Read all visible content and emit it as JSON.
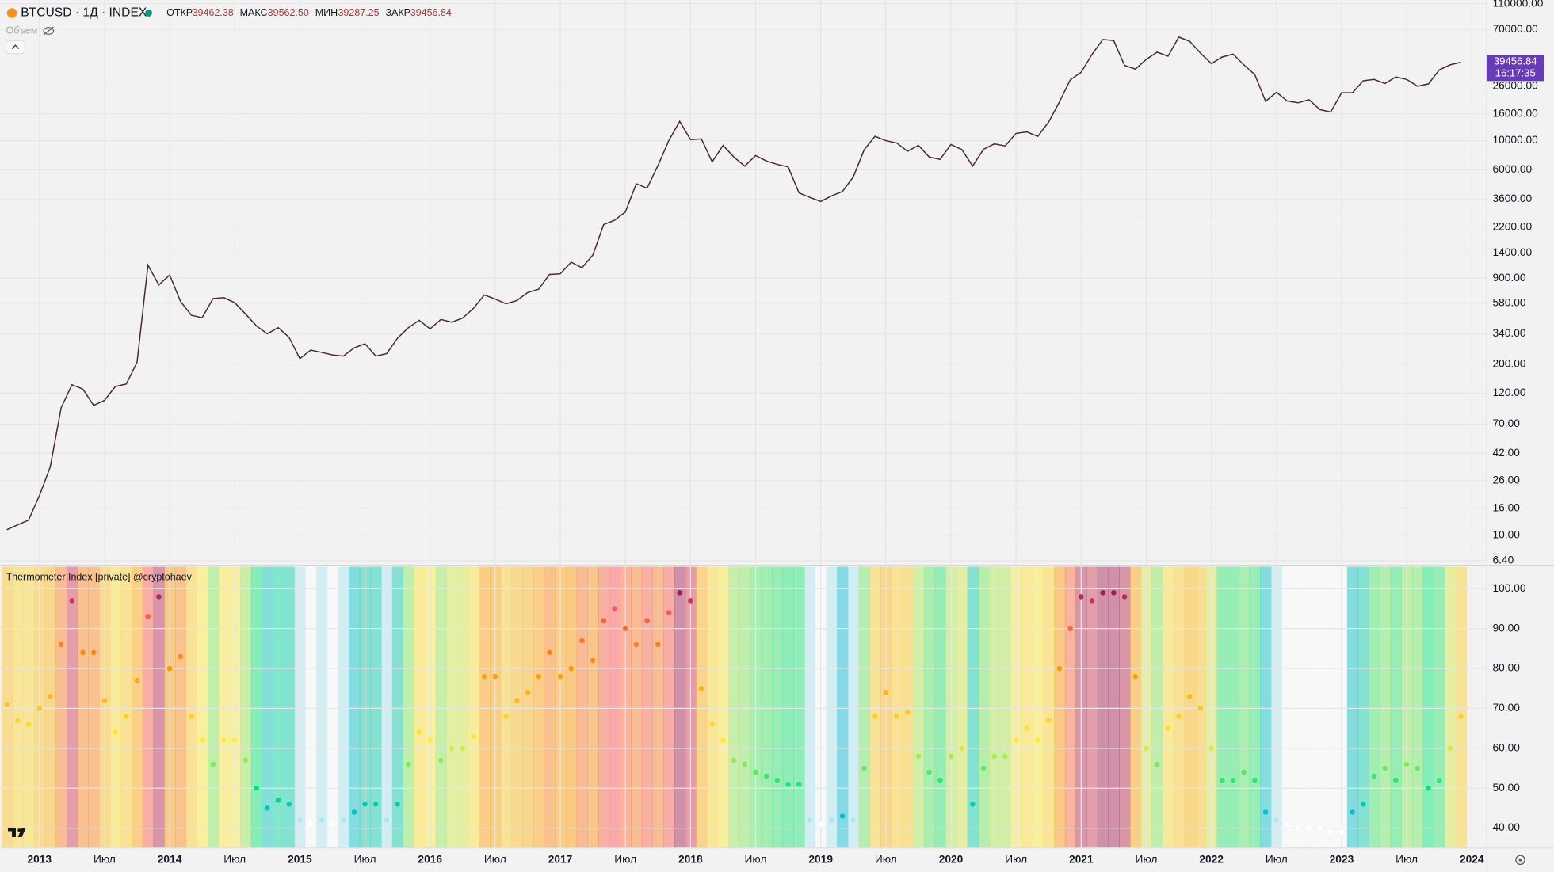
{
  "chart_data": {
    "type": "line",
    "header": {
      "open_label": "ОТКР",
      "open": "39462.38",
      "high_label": "МАКС",
      "high": "39562.50",
      "low_label": "МИН",
      "low": "39287.25",
      "close_label": "ЗАКР",
      "close": "39456.84",
      "volume_label": "Объем",
      "countdown": "16:17:35"
    },
    "x": [
      "2012-10",
      "2012-11",
      "2012-12",
      "2013-01",
      "2013-02",
      "2013-03",
      "2013-04",
      "2013-05",
      "2013-06",
      "2013-07",
      "2013-08",
      "2013-09",
      "2013-10",
      "2013-11",
      "2013-12",
      "2014-01",
      "2014-02",
      "2014-03",
      "2014-04",
      "2014-05",
      "2014-06",
      "2014-07",
      "2014-08",
      "2014-09",
      "2014-10",
      "2014-11",
      "2014-12",
      "2015-01",
      "2015-02",
      "2015-03",
      "2015-04",
      "2015-05",
      "2015-06",
      "2015-07",
      "2015-08",
      "2015-09",
      "2015-10",
      "2015-11",
      "2015-12",
      "2016-01",
      "2016-02",
      "2016-03",
      "2016-04",
      "2016-05",
      "2016-06",
      "2016-07",
      "2016-08",
      "2016-09",
      "2016-10",
      "2016-11",
      "2016-12",
      "2017-01",
      "2017-02",
      "2017-03",
      "2017-04",
      "2017-05",
      "2017-06",
      "2017-07",
      "2017-08",
      "2017-09",
      "2017-10",
      "2017-11",
      "2017-12",
      "2018-01",
      "2018-02",
      "2018-03",
      "2018-04",
      "2018-05",
      "2018-06",
      "2018-07",
      "2018-08",
      "2018-09",
      "2018-10",
      "2018-11",
      "2018-12",
      "2019-01",
      "2019-02",
      "2019-03",
      "2019-04",
      "2019-05",
      "2019-06",
      "2019-07",
      "2019-08",
      "2019-09",
      "2019-10",
      "2019-11",
      "2019-12",
      "2020-01",
      "2020-02",
      "2020-03",
      "2020-04",
      "2020-05",
      "2020-06",
      "2020-07",
      "2020-08",
      "2020-09",
      "2020-10",
      "2020-11",
      "2020-12",
      "2021-01",
      "2021-02",
      "2021-03",
      "2021-04",
      "2021-05",
      "2021-06",
      "2021-07",
      "2021-08",
      "2021-09",
      "2021-10",
      "2021-11",
      "2021-12",
      "2022-01",
      "2022-02",
      "2022-03",
      "2022-04",
      "2022-05",
      "2022-06",
      "2022-07",
      "2022-08",
      "2022-09",
      "2022-10",
      "2022-11",
      "2022-12",
      "2023-01",
      "2023-02",
      "2023-03",
      "2023-04",
      "2023-05",
      "2023-06",
      "2023-07",
      "2023-08",
      "2023-09",
      "2023-10",
      "2023-11",
      "2023-12"
    ],
    "series": [
      {
        "name": "BTCUSD · 1Д · INDEX",
        "color": "#4a2b2b",
        "axis": "y",
        "values": [
          11,
          12,
          13,
          20,
          33,
          93,
          139,
          129,
          97,
          106,
          135,
          141,
          206,
          1130,
          800,
          950,
          600,
          470,
          450,
          630,
          640,
          585,
          480,
          390,
          340,
          378,
          320,
          220,
          255,
          245,
          235,
          230,
          265,
          285,
          230,
          240,
          315,
          378,
          430,
          370,
          437,
          416,
          448,
          531,
          670,
          624,
          575,
          608,
          700,
          740,
          960,
          970,
          1190,
          1080,
          1350,
          2300,
          2480,
          2870,
          4700,
          4340,
          6470,
          10000,
          14000,
          10200,
          10300,
          6900,
          9200,
          7500,
          6400,
          7700,
          7000,
          6600,
          6300,
          4000,
          3700,
          3450,
          3800,
          4100,
          5300,
          8500,
          10800,
          10000,
          9600,
          8300,
          9200,
          7500,
          7200,
          9350,
          8550,
          6400,
          8600,
          9450,
          9130,
          11350,
          11650,
          10780,
          13800,
          19700,
          29000,
          33100,
          45200,
          58800,
          57700,
          37300,
          35000,
          41500,
          47100,
          43800,
          61300,
          57000,
          46300,
          38500,
          43200,
          45500,
          37700,
          31800,
          19900,
          23300,
          20000,
          19400,
          20500,
          17200,
          16500,
          23100,
          23100,
          28500,
          29200,
          27200,
          30500,
          29200,
          25900,
          27000,
          34500,
          37700,
          39456.84
        ]
      },
      {
        "name": "Thermometer Index [private] @cryptohaev",
        "axis": "y2",
        "values": [
          71,
          67,
          66,
          70,
          73,
          86,
          97,
          84,
          84,
          72,
          64,
          68,
          77,
          93,
          98,
          80,
          83,
          68,
          62,
          56,
          62,
          62,
          57,
          50,
          45,
          47,
          46,
          42,
          41,
          42,
          41,
          42,
          44,
          46,
          46,
          42,
          46,
          56,
          64,
          62,
          57,
          60,
          60,
          63,
          78,
          78,
          68,
          72,
          74,
          78,
          84,
          78,
          80,
          87,
          82,
          92,
          95,
          90,
          86,
          92,
          86,
          94,
          99,
          97,
          75,
          66,
          62,
          57,
          56,
          54,
          53,
          52,
          51,
          51,
          42,
          41,
          42,
          43,
          42,
          55,
          68,
          74,
          68,
          69,
          58,
          54,
          52,
          58,
          60,
          46,
          55,
          58,
          58,
          62,
          65,
          62,
          67,
          80,
          90,
          98,
          97,
          99,
          99,
          98,
          78,
          60,
          56,
          65,
          68,
          73,
          70,
          60,
          52,
          52,
          54,
          52,
          44,
          42,
          41,
          40,
          40,
          40,
          39,
          39,
          44,
          46,
          53,
          55,
          52,
          56,
          55,
          50,
          52,
          60,
          68
        ]
      }
    ],
    "xlim": [
      "2012-09",
      "2024-02"
    ],
    "xticks": [
      {
        "value": "2013-01",
        "label": "2013"
      },
      {
        "value": "2013-07",
        "label": "Июл"
      },
      {
        "value": "2014-01",
        "label": "2014"
      },
      {
        "value": "2014-07",
        "label": "Июл"
      },
      {
        "value": "2015-01",
        "label": "2015"
      },
      {
        "value": "2015-07",
        "label": "Июл"
      },
      {
        "value": "2016-01",
        "label": "2016"
      },
      {
        "value": "2016-07",
        "label": "Июл"
      },
      {
        "value": "2017-01",
        "label": "2017"
      },
      {
        "value": "2017-07",
        "label": "Июл"
      },
      {
        "value": "2018-01",
        "label": "2018"
      },
      {
        "value": "2018-07",
        "label": "Июл"
      },
      {
        "value": "2019-01",
        "label": "2019"
      },
      {
        "value": "2019-07",
        "label": "Июл"
      },
      {
        "value": "2020-01",
        "label": "2020"
      },
      {
        "value": "2020-07",
        "label": "Июл"
      },
      {
        "value": "2021-01",
        "label": "2021"
      },
      {
        "value": "2021-07",
        "label": "Июл"
      },
      {
        "value": "2022-01",
        "label": "2022"
      },
      {
        "value": "2022-07",
        "label": "Июл"
      },
      {
        "value": "2023-01",
        "label": "2023"
      },
      {
        "value": "2023-07",
        "label": "Июл"
      },
      {
        "value": "2024-01",
        "label": "2024"
      }
    ],
    "ylim": [
      5.95,
      117000
    ],
    "ylog": true,
    "yticks": [
      {
        "value": 110000,
        "label": "110000.00"
      },
      {
        "value": 70000,
        "label": "70000.00"
      },
      {
        "value": 26000,
        "label": "26000.00"
      },
      {
        "value": 16000,
        "label": "16000.00"
      },
      {
        "value": 10000,
        "label": "10000.00"
      },
      {
        "value": 6000,
        "label": "6000.00"
      },
      {
        "value": 3600,
        "label": "3600.00"
      },
      {
        "value": 2200,
        "label": "2200.00"
      },
      {
        "value": 1400,
        "label": "1400.00"
      },
      {
        "value": 900,
        "label": "900.00"
      },
      {
        "value": 580,
        "label": "580.00"
      },
      {
        "value": 340,
        "label": "340.00"
      },
      {
        "value": 200,
        "label": "200.00"
      },
      {
        "value": 120,
        "label": "120.00"
      },
      {
        "value": 70,
        "label": "70.00"
      },
      {
        "value": 42,
        "label": "42.00"
      },
      {
        "value": 26,
        "label": "26.00"
      },
      {
        "value": 16,
        "label": "16.00"
      },
      {
        "value": 10,
        "label": "10.00"
      },
      {
        "value": 6.4,
        "label": "6.40"
      }
    ],
    "y2lim": [
      35,
      105.5
    ],
    "y2ticks": [
      {
        "value": 40,
        "label": "40.00"
      },
      {
        "value": 50,
        "label": "50.00"
      },
      {
        "value": 60,
        "label": "60.00"
      },
      {
        "value": 70,
        "label": "70.00"
      },
      {
        "value": 80,
        "label": "80.00"
      },
      {
        "value": 90,
        "label": "90.00"
      },
      {
        "value": 100,
        "label": "100.00"
      }
    ],
    "colorscale": [
      [
        41.5,
        "#ffffff"
      ],
      [
        43,
        "#00bcd4"
      ],
      [
        50,
        "#00e676"
      ],
      [
        62,
        "#ffeb3b"
      ],
      [
        80,
        "#ff9800"
      ],
      [
        95,
        "#ff5252"
      ],
      [
        100,
        "#880e4f"
      ]
    ],
    "grid": true
  }
}
